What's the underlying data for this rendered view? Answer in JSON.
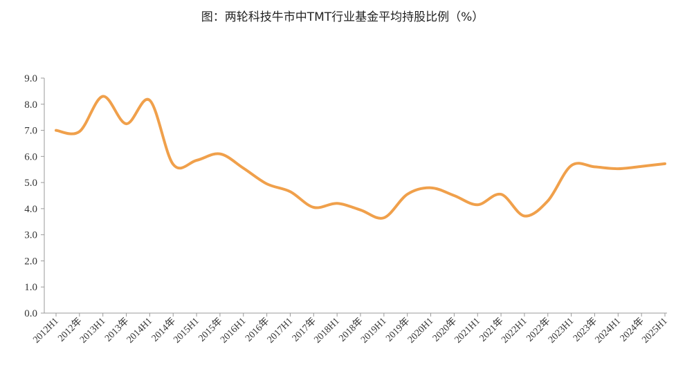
{
  "chart_data": {
    "type": "line",
    "title": "图：两轮科技牛市中TMT行业基金平均持股比例（%）",
    "xlabel": "",
    "ylabel": "",
    "ylim": [
      0,
      9
    ],
    "yticks": [
      "0.0",
      "1.0",
      "2.0",
      "3.0",
      "4.0",
      "5.0",
      "6.0",
      "7.0",
      "8.0",
      "9.0"
    ],
    "grid": false,
    "legend": "none",
    "line_color": "#F0A04B",
    "categories": [
      "2012H1",
      "2012年",
      "2013H1",
      "2013年",
      "2014H1",
      "2014年",
      "2015H1",
      "2015年",
      "2016H1",
      "2016年",
      "2017H1",
      "2017年",
      "2018H1",
      "2018年",
      "2019H1",
      "2019年",
      "2020H1",
      "2020年",
      "2021H1",
      "2021年",
      "2022H1",
      "2022年",
      "2023H1",
      "2023年",
      "2024H1",
      "2024年",
      "2025H1"
    ],
    "series": [
      {
        "values": [
          7.0,
          6.95,
          8.3,
          7.25,
          8.15,
          5.7,
          5.85,
          6.1,
          5.55,
          4.95,
          4.65,
          4.05,
          4.2,
          3.95,
          3.65,
          4.55,
          4.8,
          4.5,
          4.15,
          4.55,
          3.72,
          4.3,
          5.65,
          5.6,
          5.53,
          5.62,
          5.72
        ]
      }
    ]
  }
}
